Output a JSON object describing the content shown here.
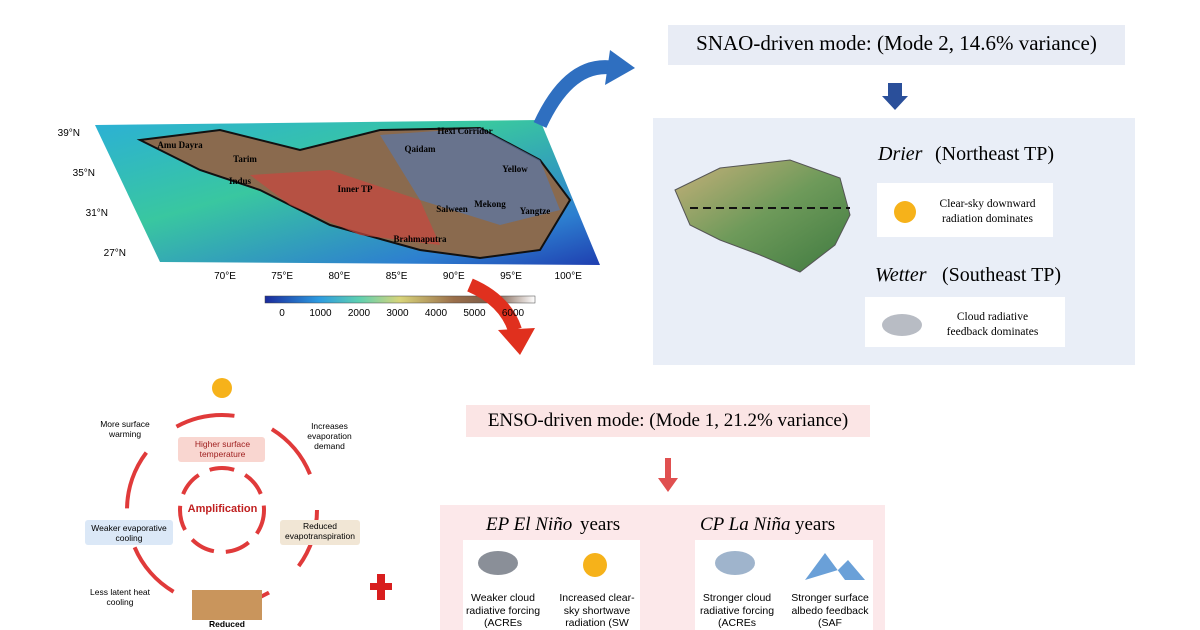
{
  "map": {
    "lat_labels": [
      "39°N",
      "35°N",
      "31°N",
      "27°N"
    ],
    "lon_labels": [
      "70°E",
      "75°E",
      "80°E",
      "85°E",
      "90°E",
      "95°E",
      "100°E"
    ],
    "regions": [
      "Amu Dayra",
      "Tarim",
      "Indus",
      "Inner TP",
      "Qaidam",
      "Hexi Corridor",
      "Yellow",
      "Salween",
      "Mekong",
      "Yangtze",
      "Brahmaputra"
    ],
    "colorbar_ticks": [
      0,
      1000,
      2000,
      3000,
      4000,
      5000,
      6000
    ]
  },
  "snao": {
    "title": "SNAO-driven mode: (Mode 2, 14.6% variance)",
    "drier_label": "Drier",
    "drier_region": "(Northeast TP)",
    "drier_text": "Clear-sky downward radiation dominates",
    "wetter_label": "Wetter",
    "wetter_region": "(Southeast TP)",
    "wetter_text": "Cloud radiative feedback dominates"
  },
  "cycle": {
    "center": "Amplification",
    "top": "Higher surface temperature",
    "top_left": "More surface warming",
    "top_right": "Increases evaporation demand",
    "right": "Reduced evapotranspiration",
    "left": "Weaker evaporative cooling",
    "bottom_left": "Less latent heat cooling",
    "bottom": "Reduced"
  },
  "enso": {
    "title": "ENSO-driven mode: (Mode 1, 21.2% variance)",
    "el_nino_label": "EP El Niño",
    "la_nina_label": "CP La Niña",
    "years_word": "years",
    "el_nino_items": [
      "Weaker cloud radiative forcing (ACREs",
      "Increased clear-sky shortwave radiation (SW"
    ],
    "la_nina_items": [
      "Stronger cloud radiative forcing (ACREs",
      "Stronger surface albedo feedback (SAF"
    ]
  }
}
